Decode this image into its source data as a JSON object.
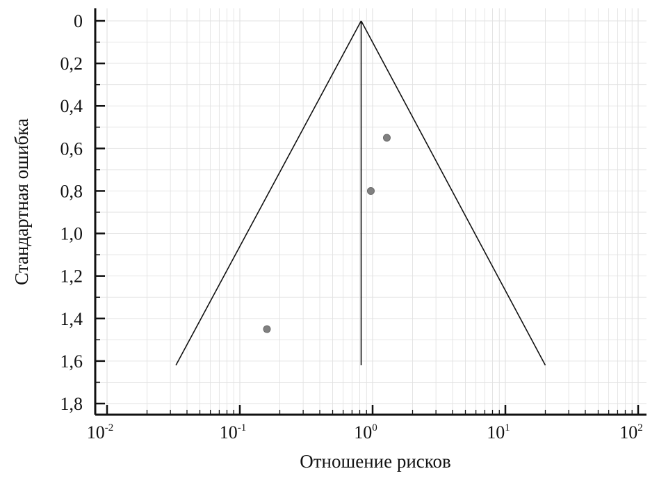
{
  "chart_data": {
    "type": "scatter",
    "subtype": "funnel-plot",
    "title": "",
    "xlabel": "Отношение рисков",
    "ylabel": "Стандартная ошибка",
    "x_scale": "log10",
    "xlim": [
      0.01,
      100
    ],
    "ylim": [
      1.8,
      0
    ],
    "y_axis_inverted": true,
    "x_ticks": [
      {
        "value": 0.01,
        "base": "10",
        "exp": "-2"
      },
      {
        "value": 0.1,
        "base": "10",
        "exp": "-1"
      },
      {
        "value": 1,
        "base": "10",
        "exp": "0"
      },
      {
        "value": 10,
        "base": "10",
        "exp": "1"
      },
      {
        "value": 100,
        "base": "10",
        "exp": "2"
      }
    ],
    "y_ticks": [
      {
        "value": 0,
        "label": "0"
      },
      {
        "value": 0.2,
        "label": "0,2"
      },
      {
        "value": 0.4,
        "label": "0,4"
      },
      {
        "value": 0.6,
        "label": "0,6"
      },
      {
        "value": 0.8,
        "label": "0,8"
      },
      {
        "value": 1.0,
        "label": "1,0"
      },
      {
        "value": 1.2,
        "label": "1,2"
      },
      {
        "value": 1.4,
        "label": "1,4"
      },
      {
        "value": 1.6,
        "label": "1,6"
      },
      {
        "value": 1.8,
        "label": "1,8"
      }
    ],
    "grid": true,
    "pooled_estimate": 0.82,
    "funnel": {
      "apex": [
        0.82,
        0
      ],
      "base_left": [
        0.033,
        1.62
      ],
      "base_right": [
        20,
        1.62
      ]
    },
    "points": [
      {
        "x": 1.28,
        "y": 0.55
      },
      {
        "x": 0.97,
        "y": 0.8
      },
      {
        "x": 0.16,
        "y": 1.45
      }
    ],
    "colors": {
      "point": "#808080",
      "line": "#111111",
      "grid": "#e2e2e2"
    }
  }
}
